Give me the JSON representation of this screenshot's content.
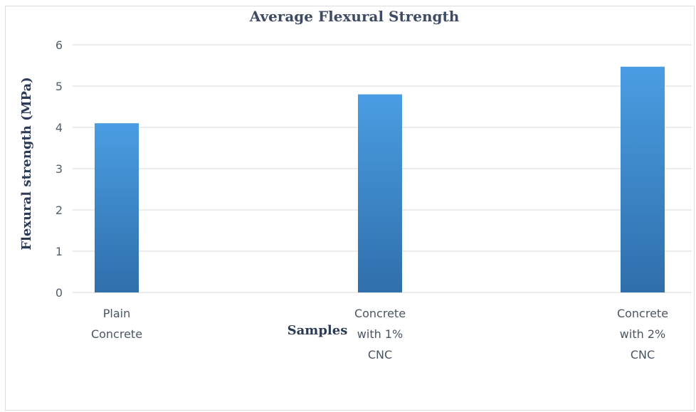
{
  "chart_data": {
    "type": "bar",
    "title": "Average Flexural Strength",
    "xlabel": "Samples",
    "ylabel": "Flexural strength (MPa)",
    "categories": [
      [
        "Plain",
        "Concrete"
      ],
      [
        "Concrete",
        "with 1%",
        "CNC"
      ],
      [
        "Concrete",
        "with 2%",
        "CNC"
      ]
    ],
    "values": [
      4.1,
      4.8,
      5.47
    ],
    "ylim": [
      0,
      6
    ],
    "yticks": [
      "0",
      "1",
      "2",
      "3",
      "4",
      "5",
      "6"
    ],
    "grid": true,
    "legend": "none",
    "colors": {
      "bar_top": "#4a9de3",
      "bar_bottom": "#2f6fab",
      "gridline": "#e6e6e6"
    }
  }
}
